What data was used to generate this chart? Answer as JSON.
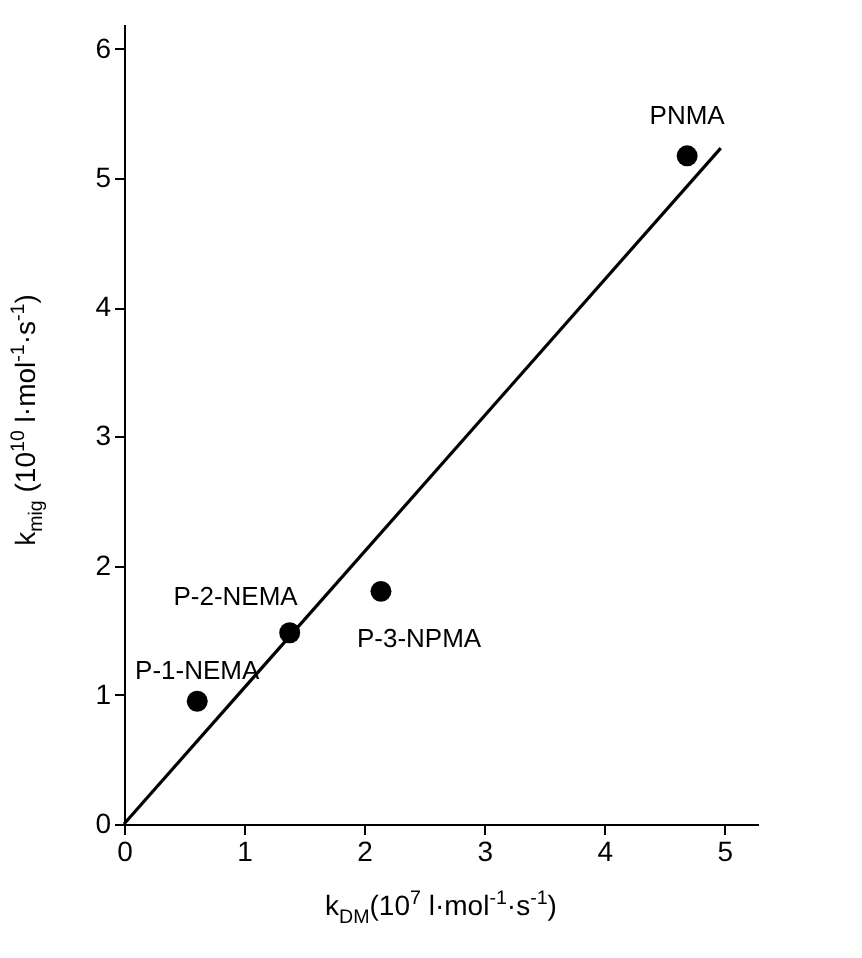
{
  "chart_data": {
    "type": "scatter",
    "xlabel": "k$_{DM}$(10$^{7}$ l·mol$^{-1}$·s$^{-1}$)",
    "ylabel": "k$_{mig}$ (10$^{10}$ l·mol$^{-1}$·s$^{-1}$)",
    "xlim": [
      0,
      5.28
    ],
    "ylim": [
      0,
      6.19
    ],
    "xticks": [
      0,
      1,
      2,
      3,
      4,
      5
    ],
    "yticks": [
      0,
      1,
      2,
      3,
      4,
      5,
      6
    ],
    "grid": false,
    "series": [
      {
        "marker": "circle",
        "color": "#000000",
        "x": [
          0.61,
          1.38,
          2.14,
          4.69
        ],
        "values": [
          0.95,
          1.48,
          1.8,
          5.17
        ]
      },
      {
        "type": "line",
        "marker": "none",
        "line_style": "solid",
        "color": "#000000",
        "x": [
          0,
          4.97
        ],
        "values": [
          0,
          5.23
        ]
      }
    ],
    "annotations": [
      {
        "text": "P-1-NEMA",
        "x": 0.61,
        "y": 0.95
      },
      {
        "text": "P-2-NEMA",
        "x": 1.38,
        "y": 1.48
      },
      {
        "text": "P-3-NPMA",
        "x": 2.14,
        "y": 1.8
      },
      {
        "text": "PNMA",
        "x": 4.69,
        "y": 5.17
      }
    ]
  }
}
